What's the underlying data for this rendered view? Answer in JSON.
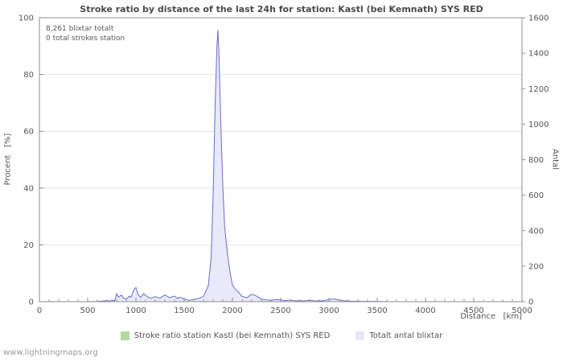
{
  "title": "Stroke ratio by distance of the last 24h for station: Kastl (bei Kemnath) SYS RED",
  "annotations": {
    "line1": "8,261 blixtar totalt",
    "line2": "0 total strokes station"
  },
  "legend": [
    {
      "label": "Stroke ratio station Kastl (bei Kemnath) SYS RED",
      "color": "#b4d9a4"
    },
    {
      "label": "Totalt antal blixtar",
      "color": "#e6e6f7"
    }
  ],
  "watermark": "www.lightningmaps.org",
  "chart_data": {
    "type": "area",
    "x_min": 0,
    "x_max": 5000,
    "x_ticks": [
      0,
      500,
      1000,
      1500,
      2000,
      2500,
      3000,
      3500,
      4000,
      4500,
      5000
    ],
    "x_axis_label": "Distance   [km]",
    "left_axis": {
      "label": "Procent   [%]",
      "min": 0,
      "max": 100,
      "ticks": [
        0,
        20,
        40,
        60,
        80,
        100
      ]
    },
    "right_axis": {
      "label": "Antal",
      "min": 0,
      "max": 1600,
      "ticks": [
        0,
        200,
        400,
        600,
        800,
        1000,
        1200,
        1400,
        1600
      ]
    },
    "grid": "horizontal-only",
    "legend_position": "bottom-center",
    "series": [
      {
        "name": "Stroke ratio station Kastl (bei Kemnath) SYS RED",
        "axis": "left",
        "line_color": "#9ccb8c",
        "fill_color": "#c9e4bd",
        "points": [
          [
            0,
            0
          ],
          [
            5000,
            0
          ]
        ]
      },
      {
        "name": "Totalt antal blixtar",
        "axis": "right",
        "line_color": "#6b6bca",
        "fill_color": "#e9e9f9",
        "points": [
          [
            0,
            0
          ],
          [
            500,
            0
          ],
          [
            600,
            1
          ],
          [
            650,
            3
          ],
          [
            700,
            6
          ],
          [
            720,
            3
          ],
          [
            750,
            8
          ],
          [
            780,
            5
          ],
          [
            800,
            45
          ],
          [
            820,
            25
          ],
          [
            850,
            38
          ],
          [
            870,
            20
          ],
          [
            900,
            15
          ],
          [
            930,
            30
          ],
          [
            950,
            25
          ],
          [
            980,
            70
          ],
          [
            1000,
            80
          ],
          [
            1020,
            40
          ],
          [
            1050,
            25
          ],
          [
            1080,
            45
          ],
          [
            1100,
            35
          ],
          [
            1150,
            18
          ],
          [
            1200,
            28
          ],
          [
            1250,
            20
          ],
          [
            1300,
            38
          ],
          [
            1350,
            22
          ],
          [
            1400,
            32
          ],
          [
            1430,
            18
          ],
          [
            1460,
            25
          ],
          [
            1500,
            14
          ],
          [
            1550,
            8
          ],
          [
            1600,
            12
          ],
          [
            1650,
            18
          ],
          [
            1700,
            30
          ],
          [
            1750,
            90
          ],
          [
            1780,
            250
          ],
          [
            1800,
            600
          ],
          [
            1820,
            1100
          ],
          [
            1840,
            1450
          ],
          [
            1850,
            1530
          ],
          [
            1860,
            1400
          ],
          [
            1880,
            1000
          ],
          [
            1900,
            650
          ],
          [
            1920,
            420
          ],
          [
            1950,
            260
          ],
          [
            1980,
            150
          ],
          [
            2000,
            95
          ],
          [
            2030,
            70
          ],
          [
            2060,
            55
          ],
          [
            2100,
            30
          ],
          [
            2150,
            22
          ],
          [
            2200,
            42
          ],
          [
            2250,
            32
          ],
          [
            2300,
            14
          ],
          [
            2350,
            10
          ],
          [
            2400,
            8
          ],
          [
            2450,
            12
          ],
          [
            2500,
            10
          ],
          [
            2550,
            6
          ],
          [
            2600,
            9
          ],
          [
            2650,
            5
          ],
          [
            2700,
            6
          ],
          [
            2750,
            4
          ],
          [
            2800,
            8
          ],
          [
            2850,
            5
          ],
          [
            2900,
            4
          ],
          [
            2950,
            6
          ],
          [
            3000,
            12
          ],
          [
            3050,
            16
          ],
          [
            3100,
            10
          ],
          [
            3150,
            5
          ],
          [
            3200,
            4
          ],
          [
            3250,
            2
          ],
          [
            3300,
            3
          ],
          [
            3350,
            1
          ],
          [
            3400,
            2
          ],
          [
            3500,
            1
          ],
          [
            3600,
            0
          ],
          [
            3700,
            0
          ],
          [
            3800,
            0
          ],
          [
            3900,
            0
          ],
          [
            4000,
            0
          ],
          [
            4250,
            0
          ],
          [
            4500,
            0
          ],
          [
            4750,
            0
          ],
          [
            5000,
            0
          ]
        ]
      }
    ]
  }
}
